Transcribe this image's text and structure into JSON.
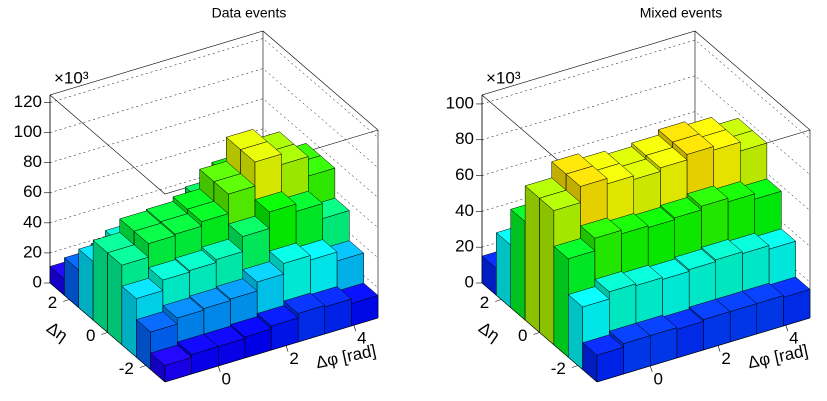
{
  "chart_data": [
    {
      "type": "lego",
      "title": "Data events",
      "xlabel": "Δφ [rad]",
      "ylabel": "Δη",
      "zexponent": "×10³",
      "xlim": [
        -1.571,
        4.712
      ],
      "xticks": [
        0,
        2,
        4
      ],
      "ylim": [
        -3,
        3
      ],
      "yticks": [
        -2,
        0,
        2
      ],
      "zlim": [
        0,
        125
      ],
      "zticks": [
        0,
        20,
        40,
        60,
        80,
        100,
        120
      ],
      "z": [
        [
          11,
          25,
          39,
          53,
          53,
          39,
          25,
          11
        ],
        [
          13,
          29,
          46,
          62,
          62,
          46,
          29,
          13
        ],
        [
          13,
          30,
          47,
          63,
          63,
          47,
          30,
          13
        ],
        [
          14,
          31,
          49,
          66,
          66,
          49,
          31,
          14
        ],
        [
          16,
          37,
          59,
          79,
          79,
          59,
          37,
          16
        ],
        [
          19,
          44,
          70,
          95,
          95,
          70,
          44,
          19
        ],
        [
          18,
          41,
          65,
          88,
          88,
          65,
          41,
          18
        ],
        [
          15,
          35,
          55,
          75,
          75,
          55,
          35,
          15
        ]
      ]
    },
    {
      "type": "lego",
      "title": "Mixed events",
      "xlabel": "Δφ [rad]",
      "ylabel": "Δη",
      "zexponent": "×10³",
      "xlim": [
        -1.571,
        4.712
      ],
      "xticks": [
        0,
        2,
        4
      ],
      "ylim": [
        -3,
        3
      ],
      "yticks": [
        -2,
        0,
        2
      ],
      "zlim": [
        0,
        105
      ],
      "zticks": [
        0,
        20,
        40,
        60,
        80,
        100
      ],
      "z": [
        [
          15,
          35,
          55,
          75,
          75,
          55,
          35,
          15
        ],
        [
          17,
          39,
          62,
          84,
          84,
          62,
          39,
          17
        ],
        [
          17,
          38,
          60,
          81,
          81,
          60,
          38,
          17
        ],
        [
          16,
          37,
          59,
          79,
          79,
          59,
          37,
          16
        ],
        [
          17,
          38,
          60,
          81,
          81,
          60,
          38,
          17
        ],
        [
          17,
          39,
          62,
          84,
          84,
          62,
          39,
          17
        ],
        [
          17,
          38,
          60,
          82,
          82,
          60,
          38,
          17
        ],
        [
          16,
          36,
          57,
          77,
          77,
          57,
          36,
          16
        ]
      ]
    }
  ]
}
